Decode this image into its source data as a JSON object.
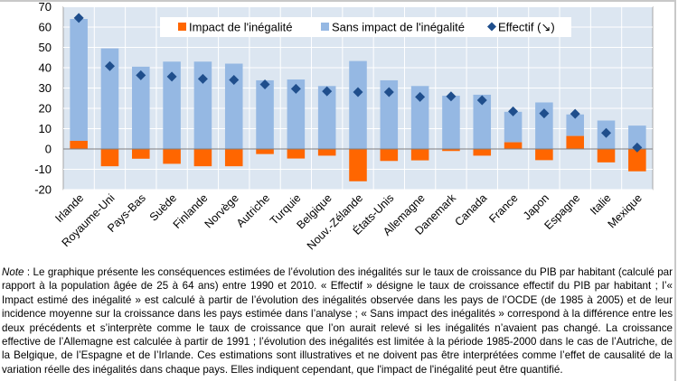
{
  "chart_data": {
    "type": "bar",
    "stacked": true,
    "title": "",
    "xlabel": "",
    "ylabel": "",
    "ylim": [
      -20,
      70
    ],
    "yticks": [
      70,
      60,
      50,
      40,
      30,
      20,
      10,
      0,
      -10,
      -20
    ],
    "grid": true,
    "legend_position": "top-center",
    "categories": [
      "Irlande",
      "Royaume-Uni",
      "Pays-Bas",
      "Suède",
      "Finlande",
      "Norvège",
      "Autriche",
      "Turquie",
      "Belgique",
      "Nouv.-Zélande",
      "États-Unis",
      "Allemagne",
      "Danemark",
      "Canada",
      "France",
      "Japon",
      "Espagne",
      "Italie",
      "Mexique"
    ],
    "series": [
      {
        "name": "Impact de l'inégalité",
        "type": "bar",
        "color": "#ff6600",
        "values": [
          4.0,
          -8.5,
          -4.8,
          -7.3,
          -8.5,
          -8.5,
          -2.5,
          -4.7,
          -3.3,
          -15.9,
          -5.9,
          -5.6,
          -1.0,
          -3.3,
          3.3,
          -5.5,
          6.4,
          -6.6,
          -11.0
        ]
      },
      {
        "name": "Sans impact de l'inégalité",
        "type": "bar",
        "color": "#95b8e3",
        "values": [
          60.0,
          49.5,
          40.5,
          43.0,
          43.0,
          42.0,
          33.8,
          34.2,
          31.0,
          43.3,
          33.8,
          31.0,
          26.2,
          26.7,
          15.0,
          22.9,
          10.6,
          14.0,
          11.5
        ]
      },
      {
        "name": "Effectif (↘)",
        "type": "scatter",
        "marker": "diamond",
        "color": "#1f4e8c",
        "values": [
          64.5,
          40.8,
          36.3,
          35.6,
          34.5,
          34.0,
          31.8,
          29.6,
          28.4,
          28.0,
          28.0,
          25.6,
          25.9,
          24.0,
          18.5,
          17.5,
          17.3,
          7.9,
          0.7
        ]
      }
    ]
  },
  "legend": {
    "items": [
      {
        "label": "Impact de l'inégalité",
        "marker": "square",
        "color": "#ff6600"
      },
      {
        "label": "Sans impact de l'inégalité",
        "marker": "square",
        "color": "#95b8e3"
      },
      {
        "label": "Effectif (↘)",
        "marker": "diamond",
        "color": "#1f4e8c"
      }
    ]
  },
  "colors": {
    "plot_background": "#dce6f1",
    "gridline": "#ffffff",
    "zero_line": "#7f7f7f",
    "axis": "#a6a6a6"
  },
  "note": {
    "label": "Note",
    "text": " : Le graphique présente les conséquences estimées de l’évolution des inégalités sur le taux de croissance du PIB par habitant (calculé par rapport à la population âgée de 25 à 64 ans) entre 1990 et 2010. « Effectif » désigne le taux de croissance effectif du PIB par habitant ; l’« Impact estimé des inégalité » est calculé à partir de l’évolution des inégalités observée dans les pays de l’OCDE (de 1985 à 2005) et de leur incidence moyenne sur la croissance dans les pays estimée dans l’analyse ; « Sans impact des inégalités » correspond à la différence entre les deux précédents et s’interprète comme le taux de croissance que l’on aurait relevé si les inégalités n’avaient pas changé. La croissance effective de l’Allemagne est calculée à partir de 1991 ; l’évolution des inégalités est limitée à la période 1985-2000 dans le cas de l’Autriche, de la Belgique, de l’Espagne et de l’Irlande. Ces estimations sont illustratives et ne doivent pas être interprétées comme l’effet de causalité de la variation réelle des inégalités dans chaque pays. Elles indiquent cependant, que l'impact de l'inégalité peut être quantifié."
  }
}
